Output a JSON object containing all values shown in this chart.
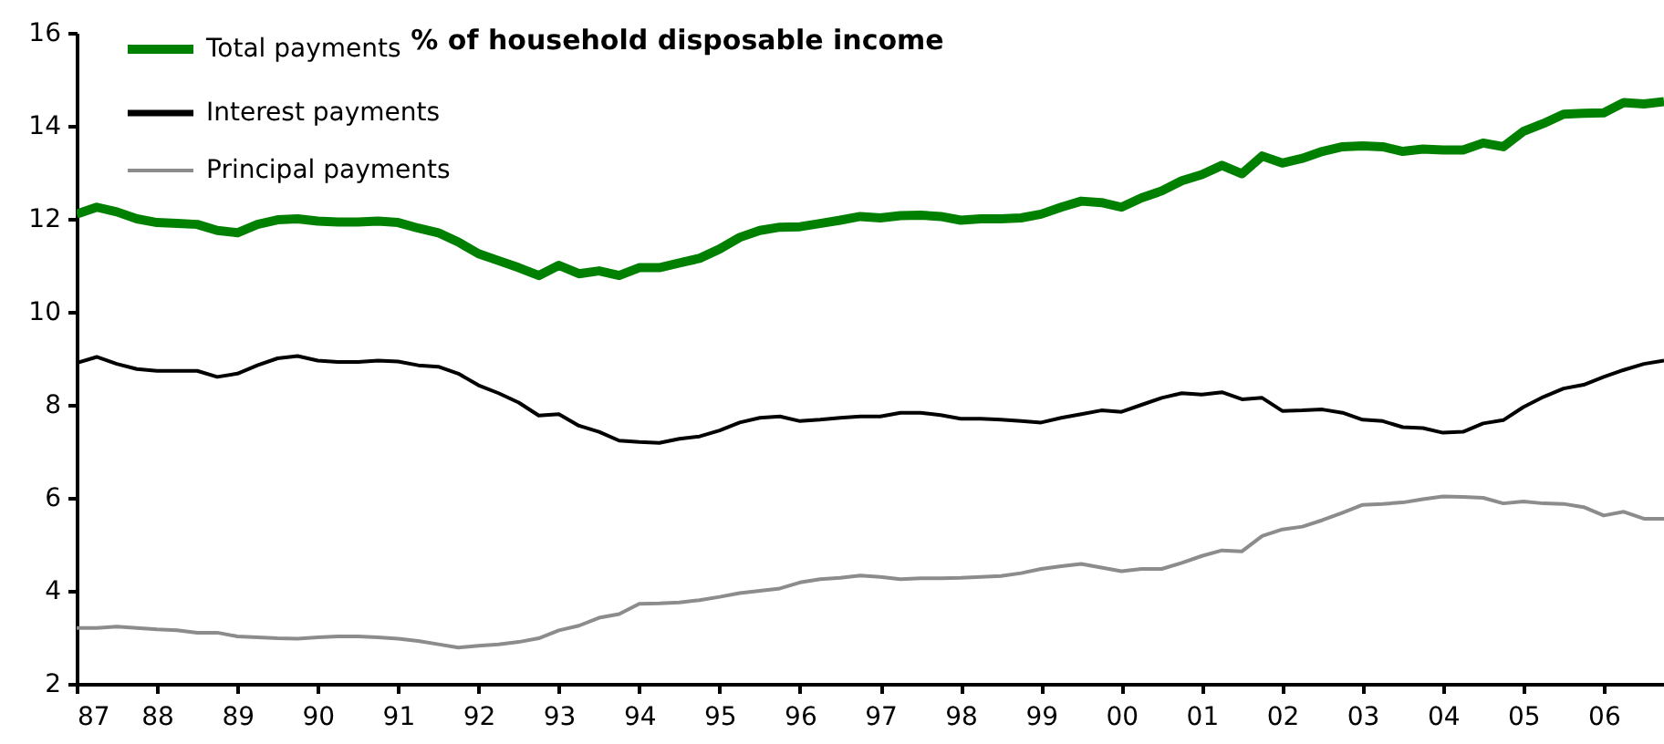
{
  "chart_data": {
    "type": "line",
    "title": "% of household disposable income",
    "x": [
      1987,
      1987.25,
      1987.5,
      1987.75,
      1988,
      1988.25,
      1988.5,
      1988.75,
      1989,
      1989.25,
      1989.5,
      1989.75,
      1990,
      1990.25,
      1990.5,
      1990.75,
      1991,
      1991.25,
      1991.5,
      1991.75,
      1992,
      1992.25,
      1992.5,
      1992.75,
      1993,
      1993.25,
      1993.5,
      1993.75,
      1994,
      1994.25,
      1994.5,
      1994.75,
      1995,
      1995.25,
      1995.5,
      1995.75,
      1996,
      1996.25,
      1996.5,
      1996.75,
      1997,
      1997.25,
      1997.5,
      1997.75,
      1998,
      1998.25,
      1998.5,
      1998.75,
      1999,
      1999.25,
      1999.5,
      1999.75,
      2000,
      2000.25,
      2000.5,
      2000.75,
      2001,
      2001.25,
      2001.5,
      2001.75,
      2002,
      2002.25,
      2002.5,
      2002.75,
      2003,
      2003.25,
      2003.5,
      2003.75,
      2004,
      2004.25,
      2004.5,
      2004.75,
      2005,
      2005.25,
      2005.5,
      2005.75,
      2006,
      2006.25,
      2006.5,
      2006.75
    ],
    "series": [
      {
        "name": "Total payments",
        "color": "#008000",
        "values": [
          12.1,
          12.25,
          12.15,
          12.0,
          11.92,
          11.9,
          11.88,
          11.75,
          11.7,
          11.88,
          11.98,
          12.0,
          11.95,
          11.93,
          11.93,
          11.95,
          11.92,
          11.8,
          11.7,
          11.5,
          11.25,
          11.1,
          10.95,
          10.78,
          11.0,
          10.82,
          10.88,
          10.78,
          10.95,
          10.95,
          11.05,
          11.15,
          11.35,
          11.6,
          11.75,
          11.82,
          11.83,
          11.9,
          11.97,
          12.05,
          12.02,
          12.07,
          12.08,
          12.05,
          11.97,
          12.0,
          12.0,
          12.02,
          12.1,
          12.25,
          12.38,
          12.35,
          12.25,
          12.45,
          12.6,
          12.82,
          12.95,
          13.15,
          12.97,
          13.35,
          13.2,
          13.3,
          13.45,
          13.55,
          13.57,
          13.55,
          13.45,
          13.5,
          13.48,
          13.48,
          13.63,
          13.55,
          13.88,
          14.05,
          14.25,
          14.27,
          14.28,
          14.5,
          14.47,
          14.52
        ]
      },
      {
        "name": "Interest payments",
        "color": "#000000",
        "values": [
          8.9,
          9.03,
          8.88,
          8.77,
          8.73,
          8.73,
          8.73,
          8.6,
          8.67,
          8.85,
          9.0,
          9.05,
          8.95,
          8.92,
          8.92,
          8.95,
          8.93,
          8.85,
          8.82,
          8.67,
          8.42,
          8.25,
          8.05,
          7.77,
          7.8,
          7.55,
          7.42,
          7.23,
          7.2,
          7.18,
          7.27,
          7.32,
          7.45,
          7.62,
          7.72,
          7.75,
          7.65,
          7.68,
          7.72,
          7.75,
          7.75,
          7.83,
          7.83,
          7.78,
          7.7,
          7.7,
          7.68,
          7.65,
          7.62,
          7.72,
          7.8,
          7.88,
          7.85,
          8.0,
          8.15,
          8.25,
          8.22,
          8.27,
          8.12,
          8.15,
          7.87,
          7.88,
          7.9,
          7.83,
          7.68,
          7.65,
          7.52,
          7.5,
          7.4,
          7.42,
          7.6,
          7.67,
          7.95,
          8.17,
          8.35,
          8.43,
          8.6,
          8.75,
          8.88,
          8.95
        ]
      },
      {
        "name": "Principal payments",
        "color": "#8c8c8c",
        "values": [
          3.2,
          3.2,
          3.23,
          3.2,
          3.17,
          3.15,
          3.1,
          3.1,
          3.02,
          3.0,
          2.98,
          2.97,
          3.0,
          3.02,
          3.02,
          3.0,
          2.97,
          2.92,
          2.85,
          2.78,
          2.82,
          2.85,
          2.9,
          2.98,
          3.15,
          3.25,
          3.42,
          3.5,
          3.72,
          3.73,
          3.75,
          3.8,
          3.87,
          3.95,
          4.0,
          4.05,
          4.18,
          4.25,
          4.28,
          4.33,
          4.3,
          4.25,
          4.27,
          4.27,
          4.28,
          4.3,
          4.32,
          4.38,
          4.47,
          4.53,
          4.58,
          4.5,
          4.42,
          4.47,
          4.47,
          4.6,
          4.75,
          4.87,
          4.85,
          5.18,
          5.32,
          5.38,
          5.52,
          5.68,
          5.85,
          5.87,
          5.9,
          5.97,
          6.03,
          6.02,
          6.0,
          5.88,
          5.92,
          5.88,
          5.87,
          5.8,
          5.62,
          5.7,
          5.55,
          5.55
        ]
      }
    ],
    "xlim": [
      1987,
      2006.75
    ],
    "xticks": [
      {
        "value": 1987,
        "label": "87"
      },
      {
        "value": 1988,
        "label": "88"
      },
      {
        "value": 1989,
        "label": "89"
      },
      {
        "value": 1990,
        "label": "90"
      },
      {
        "value": 1991,
        "label": "91"
      },
      {
        "value": 1992,
        "label": "92"
      },
      {
        "value": 1993,
        "label": "93"
      },
      {
        "value": 1994,
        "label": "94"
      },
      {
        "value": 1995,
        "label": "95"
      },
      {
        "value": 1996,
        "label": "96"
      },
      {
        "value": 1997,
        "label": "97"
      },
      {
        "value": 1998,
        "label": "98"
      },
      {
        "value": 1999,
        "label": "99"
      },
      {
        "value": 2000,
        "label": "00"
      },
      {
        "value": 2001,
        "label": "01"
      },
      {
        "value": 2002,
        "label": "02"
      },
      {
        "value": 2003,
        "label": "03"
      },
      {
        "value": 2004,
        "label": "04"
      },
      {
        "value": 2005,
        "label": "05"
      },
      {
        "value": 2006,
        "label": "06"
      }
    ],
    "ylim": [
      2,
      16
    ],
    "yticks": [
      2,
      4,
      6,
      8,
      10,
      12,
      14,
      16
    ],
    "legend": "top left"
  }
}
